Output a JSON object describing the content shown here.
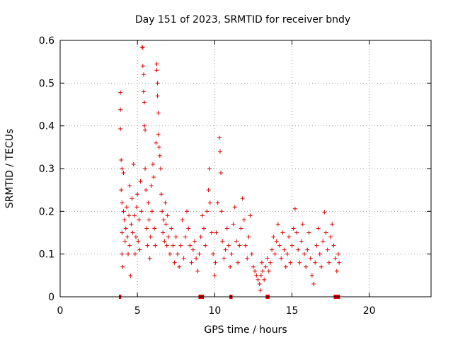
{
  "chart_data": {
    "type": "scatter",
    "title": "Day 151 of 2023, SRMTID for receiver bndy",
    "xlabel": "GPS time / hours",
    "ylabel": "SRMTID / TECUs",
    "xlim": [
      0,
      24
    ],
    "ylim": [
      0,
      0.6
    ],
    "xticks": [
      0,
      5,
      10,
      15,
      20
    ],
    "yticks": [
      0,
      0.1,
      0.2,
      0.3,
      0.4,
      0.5,
      0.6
    ],
    "xtick_labels": [
      "0",
      "5",
      "10",
      "15",
      "20"
    ],
    "ytick_labels": [
      "0",
      "0.1",
      "0.2",
      "0.3",
      "0.4",
      "0.5",
      "0.6"
    ],
    "grid": true,
    "marker": "+",
    "color": "#dd0000",
    "series": [
      {
        "name": "SRMTID",
        "points": [
          [
            3.9,
            0.478
          ],
          [
            3.9,
            0.438
          ],
          [
            3.9,
            0.393
          ],
          [
            3.95,
            0.32
          ],
          [
            3.95,
            0.25
          ],
          [
            4.0,
            0.3
          ],
          [
            4.0,
            0.22
          ],
          [
            4.0,
            0.15
          ],
          [
            4.0,
            0.1
          ],
          [
            4.05,
            0.07
          ],
          [
            4.1,
            0.29
          ],
          [
            4.1,
            0.2
          ],
          [
            4.15,
            0.18
          ],
          [
            4.2,
            0.13
          ],
          [
            4.25,
            0.16
          ],
          [
            4.3,
            0.21
          ],
          [
            4.35,
            0.14
          ],
          [
            4.4,
            0.1
          ],
          [
            4.45,
            0.19
          ],
          [
            4.5,
            0.26
          ],
          [
            4.5,
            0.12
          ],
          [
            4.55,
            0.049
          ],
          [
            4.6,
            0.17
          ],
          [
            4.65,
            0.23
          ],
          [
            4.7,
            0.15
          ],
          [
            4.75,
            0.31
          ],
          [
            4.8,
            0.19
          ],
          [
            4.85,
            0.1
          ],
          [
            4.9,
            0.14
          ],
          [
            4.95,
            0.21
          ],
          [
            5.0,
            0.24
          ],
          [
            5.05,
            0.13
          ],
          [
            5.1,
            0.18
          ],
          [
            5.15,
            0.11
          ],
          [
            5.2,
            0.27
          ],
          [
            5.25,
            0.2
          ],
          [
            5.3,
            0.584
          ],
          [
            5.35,
            0.583
          ],
          [
            5.35,
            0.54
          ],
          [
            5.4,
            0.52
          ],
          [
            5.4,
            0.48
          ],
          [
            5.45,
            0.455
          ],
          [
            5.45,
            0.4
          ],
          [
            5.5,
            0.39
          ],
          [
            5.5,
            0.3
          ],
          [
            5.55,
            0.25
          ],
          [
            5.6,
            0.16
          ],
          [
            5.65,
            0.12
          ],
          [
            5.7,
            0.22
          ],
          [
            5.75,
            0.18
          ],
          [
            5.8,
            0.09
          ],
          [
            5.85,
            0.14
          ],
          [
            5.9,
            0.26
          ],
          [
            5.95,
            0.2
          ],
          [
            6.0,
            0.31
          ],
          [
            6.05,
            0.28
          ],
          [
            6.1,
            0.16
          ],
          [
            6.15,
            0.12
          ],
          [
            6.2,
            0.36
          ],
          [
            6.25,
            0.545
          ],
          [
            6.25,
            0.53
          ],
          [
            6.3,
            0.5
          ],
          [
            6.3,
            0.47
          ],
          [
            6.35,
            0.43
          ],
          [
            6.35,
            0.38
          ],
          [
            6.4,
            0.35
          ],
          [
            6.45,
            0.33
          ],
          [
            6.5,
            0.3
          ],
          [
            6.55,
            0.24
          ],
          [
            6.6,
            0.2
          ],
          [
            6.65,
            0.15
          ],
          [
            6.7,
            0.18
          ],
          [
            6.75,
            0.13
          ],
          [
            6.8,
            0.22
          ],
          [
            6.85,
            0.17
          ],
          [
            6.9,
            0.12
          ],
          [
            6.95,
            0.19
          ],
          [
            7.0,
            0.14
          ],
          [
            7.1,
            0.1
          ],
          [
            7.2,
            0.16
          ],
          [
            7.3,
            0.12
          ],
          [
            7.4,
            0.08
          ],
          [
            7.5,
            0.14
          ],
          [
            7.6,
            0.1
          ],
          [
            7.7,
            0.07
          ],
          [
            7.8,
            0.12
          ],
          [
            7.9,
            0.18
          ],
          [
            8.0,
            0.09
          ],
          [
            8.1,
            0.14
          ],
          [
            8.2,
            0.2
          ],
          [
            8.3,
            0.16
          ],
          [
            8.4,
            0.12
          ],
          [
            8.5,
            0.08
          ],
          [
            8.6,
            0.11
          ],
          [
            8.7,
            0.13
          ],
          [
            8.8,
            0.09
          ],
          [
            8.9,
            0.06
          ],
          [
            9.0,
            0.1
          ],
          [
            9.1,
            0.14
          ],
          [
            9.2,
            0.19
          ],
          [
            9.3,
            0.16
          ],
          [
            9.4,
            0.12
          ],
          [
            9.5,
            0.2
          ],
          [
            9.6,
            0.25
          ],
          [
            9.65,
            0.3
          ],
          [
            9.7,
            0.22
          ],
          [
            9.8,
            0.15
          ],
          [
            9.9,
            0.1
          ],
          [
            10.0,
            0.05
          ],
          [
            10.05,
            0.08
          ],
          [
            10.1,
            0.15
          ],
          [
            10.2,
            0.22
          ],
          [
            10.3,
            0.372
          ],
          [
            10.35,
            0.34
          ],
          [
            10.4,
            0.29
          ],
          [
            10.45,
            0.2
          ],
          [
            10.5,
            0.13
          ],
          [
            10.6,
            0.09
          ],
          [
            10.7,
            0.11
          ],
          [
            10.8,
            0.16
          ],
          [
            10.9,
            0.12
          ],
          [
            11.0,
            0.07
          ],
          [
            11.1,
            0.1
          ],
          [
            11.2,
            0.17
          ],
          [
            11.3,
            0.21
          ],
          [
            11.4,
            0.13
          ],
          [
            11.5,
            0.08
          ],
          [
            11.6,
            0.12
          ],
          [
            11.7,
            0.16
          ],
          [
            11.8,
            0.23
          ],
          [
            11.9,
            0.18
          ],
          [
            12.0,
            0.12
          ],
          [
            12.1,
            0.09
          ],
          [
            12.2,
            0.14
          ],
          [
            12.3,
            0.19
          ],
          [
            12.4,
            0.1
          ],
          [
            12.5,
            0.07
          ],
          [
            12.6,
            0.06
          ],
          [
            12.7,
            0.05
          ],
          [
            12.8,
            0.04
          ],
          [
            12.9,
            0.03
          ],
          [
            12.95,
            0.015
          ],
          [
            13.0,
            0.05
          ],
          [
            13.05,
            0.08
          ],
          [
            13.1,
            0.06
          ],
          [
            13.2,
            0.04
          ],
          [
            13.3,
            0.07
          ],
          [
            13.4,
            0.09
          ],
          [
            13.5,
            0.06
          ],
          [
            13.6,
            0.08
          ],
          [
            13.7,
            0.11
          ],
          [
            13.8,
            0.14
          ],
          [
            13.9,
            0.1
          ],
          [
            14.0,
            0.13
          ],
          [
            14.1,
            0.17
          ],
          [
            14.2,
            0.12
          ],
          [
            14.3,
            0.09
          ],
          [
            14.4,
            0.15
          ],
          [
            14.5,
            0.11
          ],
          [
            14.6,
            0.07
          ],
          [
            14.7,
            0.1
          ],
          [
            14.8,
            0.14
          ],
          [
            14.9,
            0.08
          ],
          [
            15.0,
            0.12
          ],
          [
            15.1,
            0.16
          ],
          [
            15.2,
            0.206
          ],
          [
            15.3,
            0.15
          ],
          [
            15.4,
            0.11
          ],
          [
            15.5,
            0.08
          ],
          [
            15.6,
            0.13
          ],
          [
            15.7,
            0.17
          ],
          [
            15.8,
            0.1
          ],
          [
            15.9,
            0.07
          ],
          [
            16.0,
            0.11
          ],
          [
            16.1,
            0.15
          ],
          [
            16.2,
            0.09
          ],
          [
            16.3,
            0.05
          ],
          [
            16.4,
            0.03
          ],
          [
            16.5,
            0.08
          ],
          [
            16.6,
            0.12
          ],
          [
            16.7,
            0.16
          ],
          [
            16.8,
            0.1
          ],
          [
            16.9,
            0.07
          ],
          [
            17.0,
            0.13
          ],
          [
            17.1,
            0.198
          ],
          [
            17.2,
            0.15
          ],
          [
            17.3,
            0.11
          ],
          [
            17.4,
            0.08
          ],
          [
            17.5,
            0.14
          ],
          [
            17.6,
            0.17
          ],
          [
            17.7,
            0.12
          ],
          [
            17.8,
            0.09
          ],
          [
            17.9,
            0.06
          ],
          [
            18.0,
            0.1
          ],
          [
            18.05,
            0.08
          ]
        ]
      }
    ],
    "rug_segments": [
      [
        3.8,
        3.95
      ],
      [
        8.95,
        9.3
      ],
      [
        10.95,
        11.15
      ],
      [
        13.3,
        13.55
      ],
      [
        17.7,
        18.1
      ]
    ]
  }
}
